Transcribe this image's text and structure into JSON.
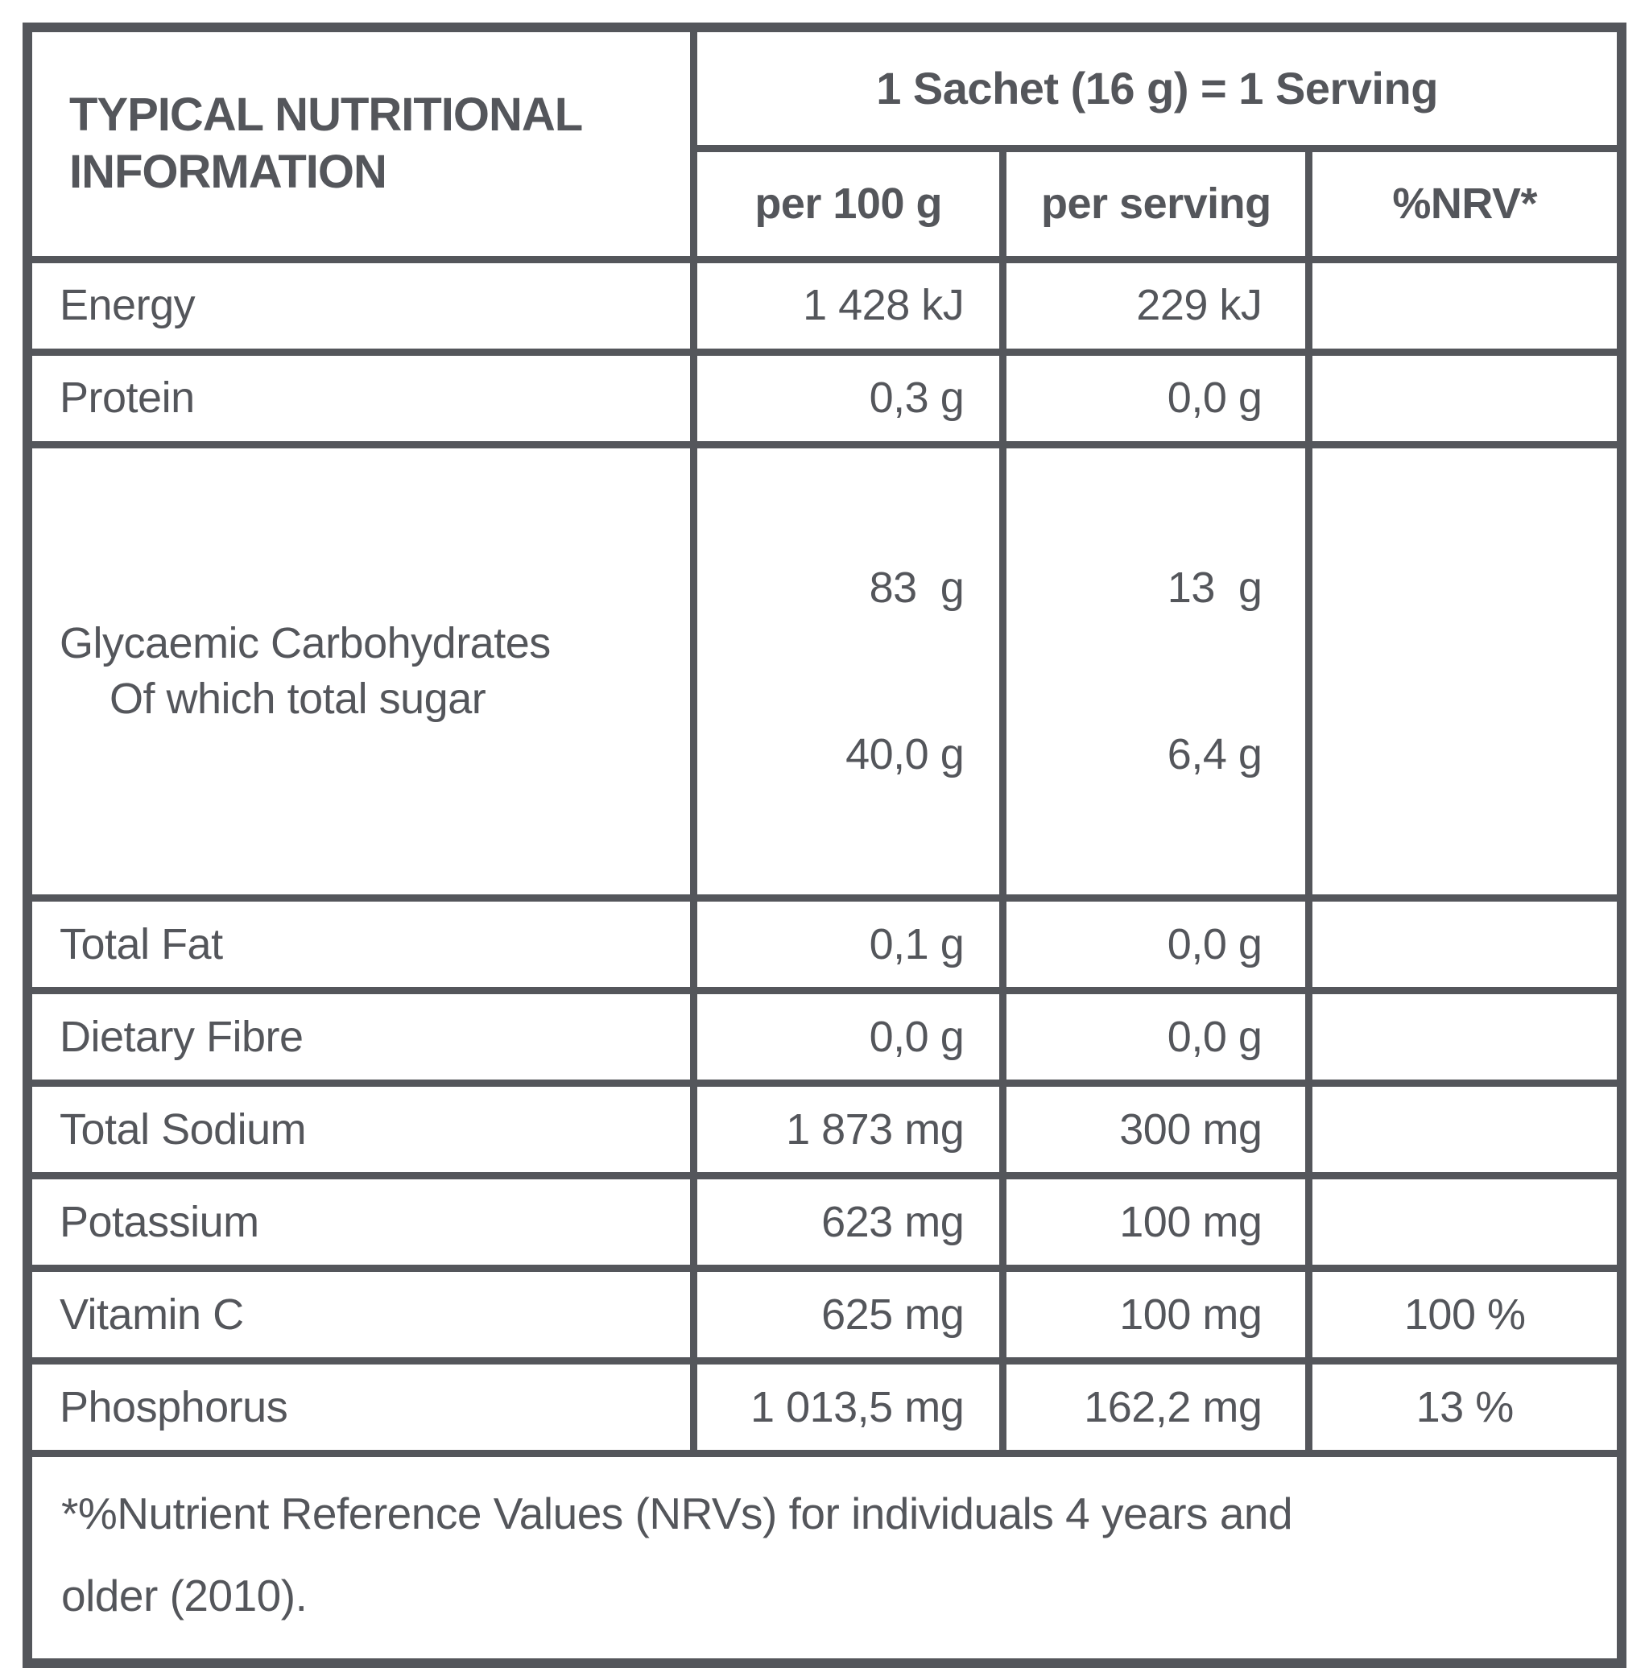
{
  "label": {
    "title_line1": "TYPICAL NUTRITIONAL",
    "title_line2": "INFORMATION",
    "serving_header": "1 Sachet (16 g) = 1 Serving",
    "columns": {
      "per100": "per 100 g",
      "serving": "per serving",
      "nrv": "%NRV*"
    },
    "rows": [
      {
        "label": "Energy",
        "per100": "1 428 kJ",
        "serving": "229 kJ",
        "nrv": ""
      },
      {
        "label": "Protein",
        "per100": "0,3 g",
        "serving": "0,0 g",
        "nrv": ""
      },
      {
        "label": "Glycaemic Carbohydrates",
        "label2": "Of which total sugar",
        "per100": "83  g",
        "per100_2": "40,0 g",
        "serving": "13  g",
        "serving_2": "6,4 g",
        "nrv": ""
      },
      {
        "label": "Total Fat",
        "per100": "0,1 g",
        "serving": "0,0 g",
        "nrv": ""
      },
      {
        "label": "Dietary Fibre",
        "per100": "0,0 g",
        "serving": "0,0 g",
        "nrv": ""
      },
      {
        "label": "Total Sodium",
        "per100": "1 873 mg",
        "serving": "300 mg",
        "nrv": ""
      },
      {
        "label": "Potassium",
        "per100": "623 mg",
        "serving": "100 mg",
        "nrv": ""
      },
      {
        "label": "Vitamin C",
        "per100": "625 mg",
        "serving": "100 mg",
        "nrv": "100 %"
      },
      {
        "label": "Phosphorus",
        "per100": "1 013,5 mg",
        "serving": "162,2 mg",
        "nrv": "13 %"
      }
    ],
    "footnote_line1": "*%Nutrient Reference Values (NRVs) for individuals 4 years and",
    "footnote_line2": "older (2010).",
    "colors": {
      "ink": "#54565b",
      "background": "#ffffff"
    }
  }
}
